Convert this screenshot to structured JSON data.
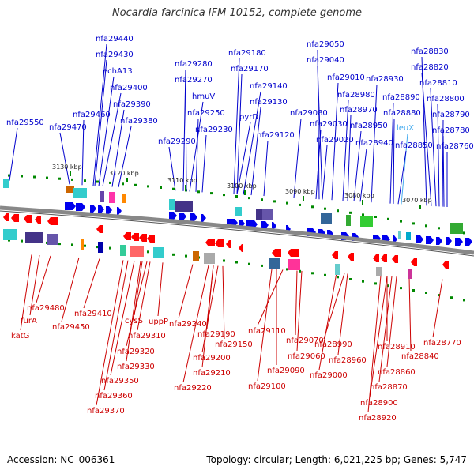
{
  "title": "Nocardia farcinica IFM 10152, complete genome",
  "footer": {
    "accession": "Accession: NC_006361",
    "topology": "Topology: circular; Length: 6,021,225 bp; Genes: 5,747"
  },
  "colors": {
    "top_label": "#0000cc",
    "top_label_highlight": "#44aaee",
    "bottom_label": "#cc0000",
    "backbone": "#888888",
    "ruler_dot": "#008800"
  },
  "ticks": [
    "3130 kbp",
    "3120 kbp",
    "3110 kbp",
    "3100 kbp",
    "3090 kbp",
    "3080 kbp",
    "3070 kbp"
  ],
  "top_labels": [
    "nfa29440",
    "nfa29430",
    "echA13",
    "nfa29400",
    "nfa29390",
    "nfa29380",
    "nfa29460",
    "nfa29470",
    "nfa29550",
    "nfa29280",
    "nfa29270",
    "hmuV",
    "nfa29250",
    "nfa29230",
    "nfa29290",
    "nfa29180",
    "nfa29170",
    "nfa29140",
    "nfa29130",
    "pyrD",
    "nfa29120",
    "nfa29050",
    "nfa29040",
    "nfa29080",
    "nfa29010",
    "nfa29030",
    "nfa29020",
    "nfa28980",
    "nfa28970",
    "nfa28950",
    "nfa28930",
    "nfa28940",
    "nfa28890",
    "nfa28880",
    "leuX",
    "nfa28850",
    "nfa28830",
    "nfa28820",
    "nfa28810",
    "nfa28800",
    "nfa28790",
    "nfa28780",
    "nfa28760"
  ],
  "bottom_labels": [
    "nfa29480",
    "furA",
    "katG",
    "nfa29410",
    "nfa29450",
    "cysS",
    "uppP",
    "nfa29310",
    "nfa29320",
    "nfa29330",
    "nfa29350",
    "nfa29360",
    "nfa29370",
    "nfa29240",
    "nfa29190",
    "nfa29150",
    "nfa29200",
    "nfa29210",
    "nfa29220",
    "nfa29110",
    "nfa29070",
    "nfa29060",
    "nfa29090",
    "nfa29100",
    "nfa28990",
    "nfa28960",
    "nfa29000",
    "nfa28910",
    "nfa28840",
    "nfa28860",
    "nfa28870",
    "nfa28900",
    "nfa28920",
    "nfa28770"
  ]
}
